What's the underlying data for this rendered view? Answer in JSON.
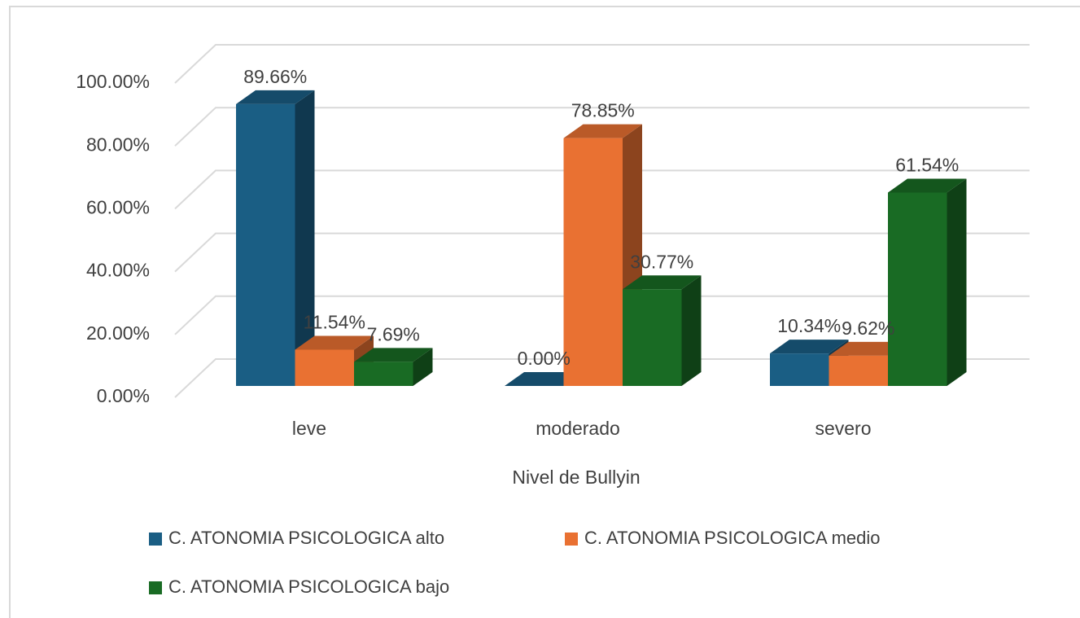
{
  "chart_data": {
    "type": "bar3d",
    "categories": [
      "leve",
      "moderado",
      "severo"
    ],
    "x_label": "Nivel de Bullyin",
    "series": [
      {
        "name": "C. ATONOMIA PSICOLOGICA alto",
        "color": "#1a5e84",
        "values": [
          89.66,
          0,
          10.34
        ],
        "value_labels": [
          "89.66%",
          "0.00%",
          "10.34%"
        ]
      },
      {
        "name": "C. ATONOMIA PSICOLOGICA medio",
        "color": "#e97132",
        "values": [
          11.54,
          78.85,
          9.62
        ],
        "value_labels": [
          "11.54%",
          "78.85%",
          "9.62%"
        ]
      },
      {
        "name": "C. ATONOMIA PSICOLOGICA bajo",
        "color": "#196b24",
        "values": [
          7.69,
          30.77,
          61.54
        ],
        "value_labels": [
          "7.69%",
          "30.77%",
          "61.54%"
        ]
      }
    ],
    "ylim": [
      0,
      100
    ],
    "yticks": [
      {
        "value": 0,
        "label": "0.00%"
      },
      {
        "value": 20,
        "label": "20.00%"
      },
      {
        "value": 40,
        "label": "40.00%"
      },
      {
        "value": 60,
        "label": "60.00%"
      },
      {
        "value": 80,
        "label": "80.00%"
      },
      {
        "value": 100,
        "label": "100.00%"
      }
    ],
    "grid": true
  }
}
